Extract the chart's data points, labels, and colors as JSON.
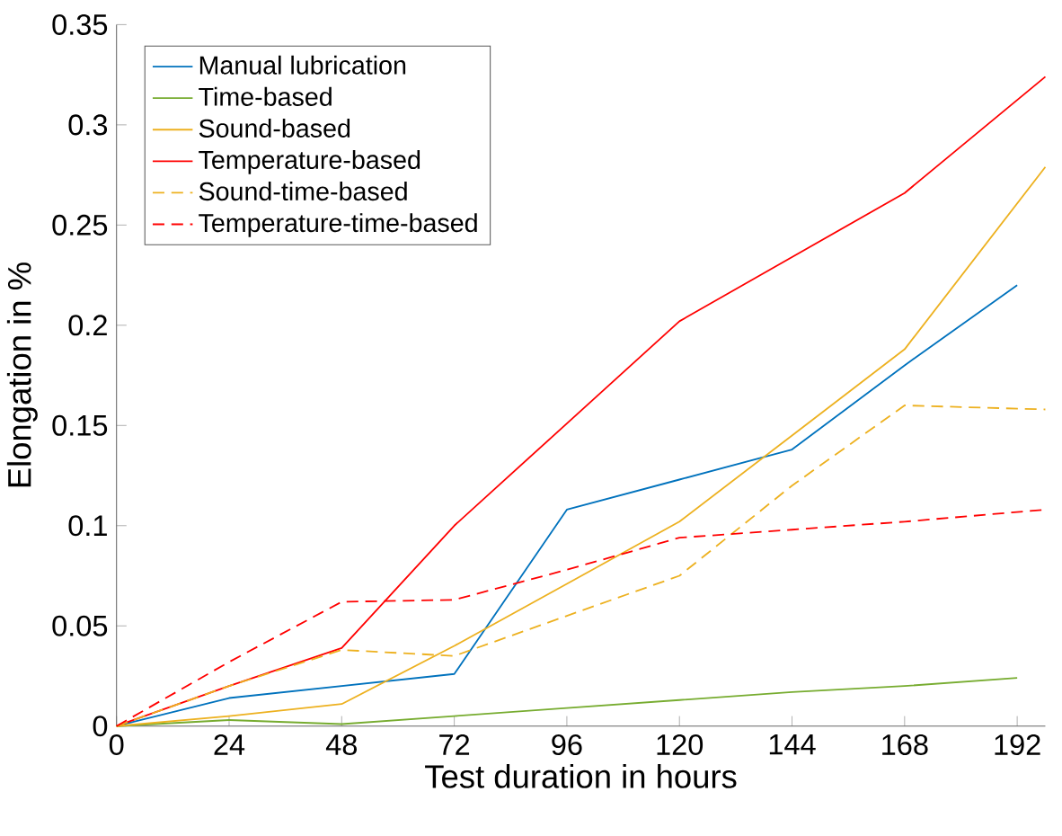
{
  "chart_data": {
    "type": "line",
    "xlabel": "Test duration in hours",
    "ylabel": "Elongation in %",
    "x": [
      0,
      24,
      48,
      72,
      96,
      120,
      144,
      168,
      198
    ],
    "xlim": [
      0,
      198
    ],
    "xticks": [
      0,
      24,
      48,
      72,
      96,
      120,
      144,
      168,
      192
    ],
    "ylim": [
      0,
      0.35
    ],
    "yticks": [
      0,
      0.05,
      0.1,
      0.15,
      0.2,
      0.25,
      0.3,
      0.35
    ],
    "grid": false,
    "legend": "top left",
    "series": [
      {
        "name": "Manual lubrication",
        "color": "#0072bd",
        "line_style": "solid",
        "values": [
          0,
          0.014,
          0.02,
          0.026,
          0.108,
          0.123,
          0.138,
          0.18,
          0.22
        ],
        "x": [
          0,
          24,
          48,
          72,
          96,
          120,
          144,
          168,
          192
        ]
      },
      {
        "name": "Time-based",
        "color": "#77ac30",
        "line_style": "solid",
        "values": [
          0,
          0.003,
          0.001,
          0.005,
          0.009,
          0.013,
          0.017,
          0.02,
          0.024
        ],
        "x": [
          0,
          24,
          48,
          72,
          96,
          120,
          144,
          168,
          192
        ]
      },
      {
        "name": "Sound-based",
        "color": "#edb120",
        "line_style": "solid",
        "values": [
          0,
          0.005,
          0.011,
          0.04,
          0.071,
          0.102,
          0.145,
          0.188,
          0.279
        ]
      },
      {
        "name": "Temperature-based",
        "color": "#ff0000",
        "line_style": "solid",
        "values": [
          0,
          0.02,
          0.039,
          0.1,
          0.151,
          0.202,
          0.234,
          0.266,
          0.324
        ]
      },
      {
        "name": "Sound-time-based",
        "color": "#edb120",
        "line_style": "dashed",
        "values": [
          0,
          0.02,
          0.038,
          0.035,
          0.055,
          0.075,
          0.12,
          0.16,
          0.158
        ]
      },
      {
        "name": "Temperature-time-based",
        "color": "#ff0000",
        "line_style": "dashed",
        "values": [
          0,
          0.032,
          0.062,
          0.063,
          0.078,
          0.094,
          0.098,
          0.102,
          0.108
        ]
      }
    ]
  }
}
